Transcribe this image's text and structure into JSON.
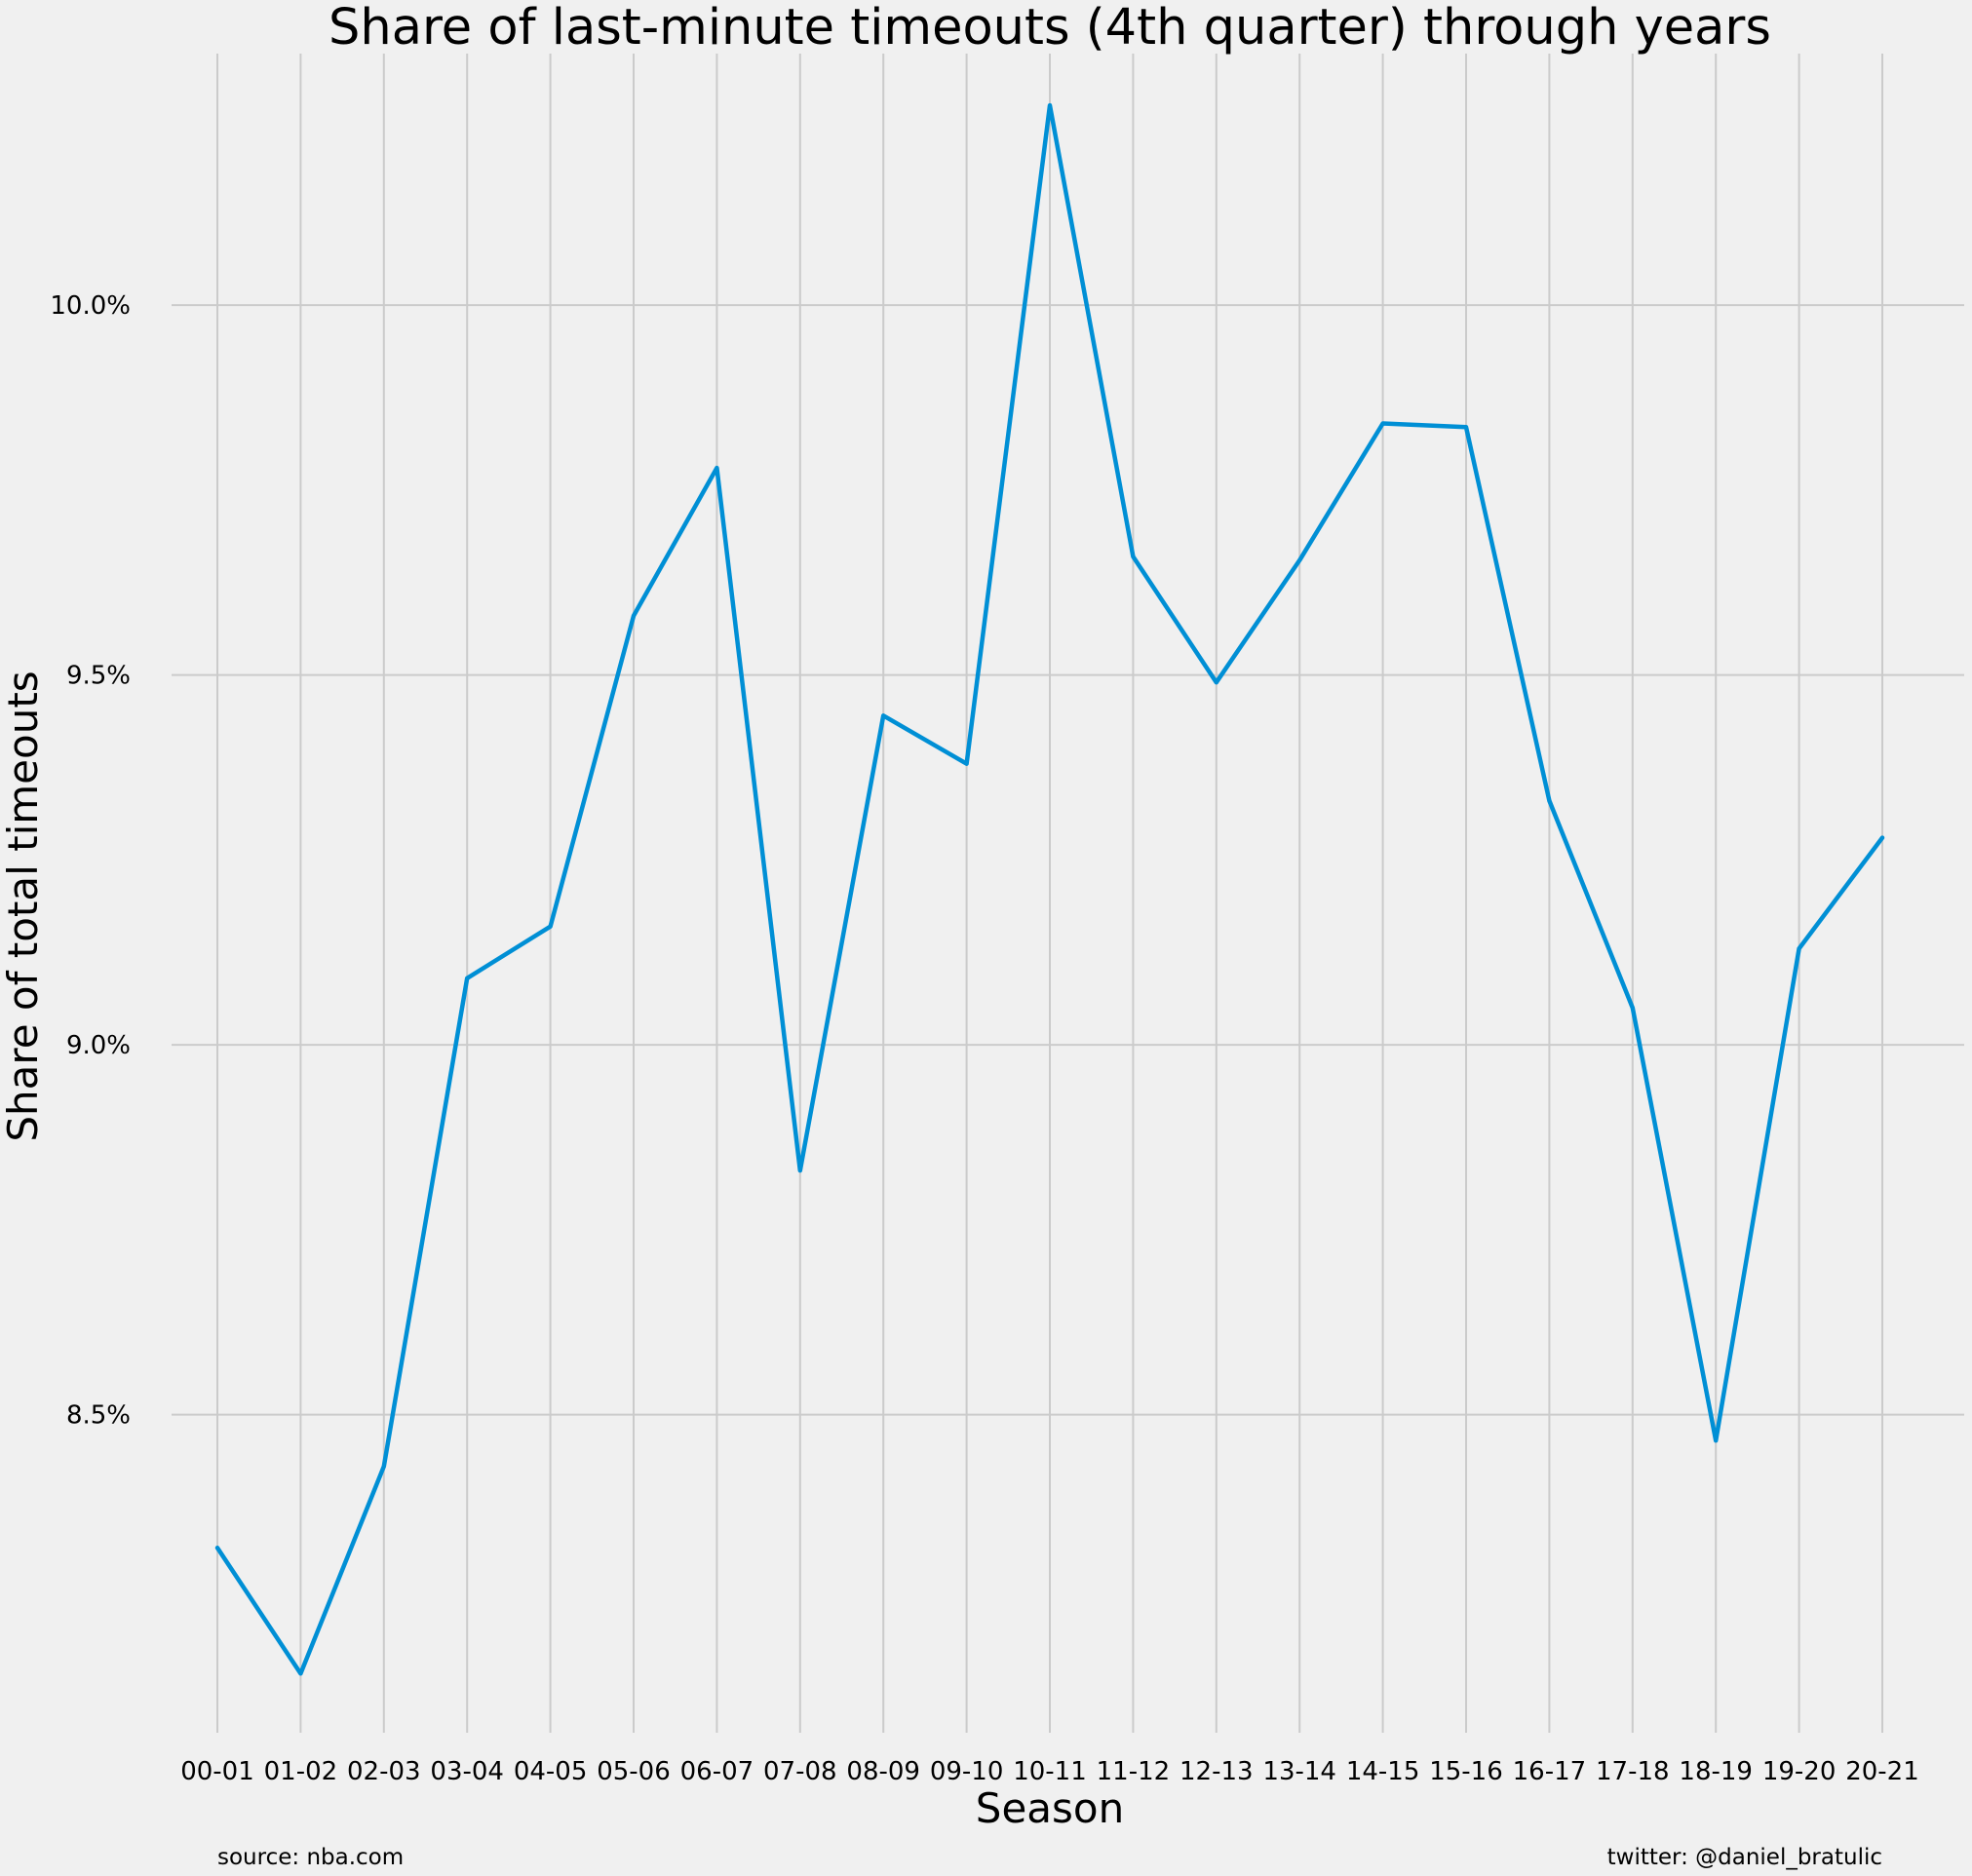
{
  "chart_data": {
    "type": "line",
    "title": "Share of last-minute timeouts (4th quarter) through years",
    "xlabel": "Season",
    "ylabel": "Share of total timeouts",
    "categories": [
      "00-01",
      "01-02",
      "02-03",
      "03-04",
      "04-05",
      "05-06",
      "06-07",
      "07-08",
      "08-09",
      "09-10",
      "10-11",
      "11-12",
      "12-13",
      "13-14",
      "14-15",
      "15-16",
      "16-17",
      "17-18",
      "18-19",
      "19-20",
      "20-21"
    ],
    "series": [
      {
        "values": [
          8.32,
          8.15,
          8.43,
          9.09,
          9.16,
          9.58,
          9.78,
          8.83,
          9.445,
          9.38,
          10.27,
          9.66,
          9.49,
          9.655,
          9.84,
          9.835,
          9.33,
          9.05,
          8.465,
          9.13,
          9.28
        ],
        "color": "#008fd5"
      }
    ],
    "ylim": [
      8.07,
      10.34
    ],
    "yticks": [
      8.5,
      9.0,
      9.5,
      10.0
    ],
    "ytick_labels": [
      "8.5%",
      "9.0%",
      "9.5%",
      "10.0%"
    ],
    "grid": true,
    "background": "#f0f0f0",
    "grid_color": "#cbcbcb"
  },
  "footer": {
    "source": "source: nba.com",
    "credit": "twitter: @daniel_bratulic"
  }
}
